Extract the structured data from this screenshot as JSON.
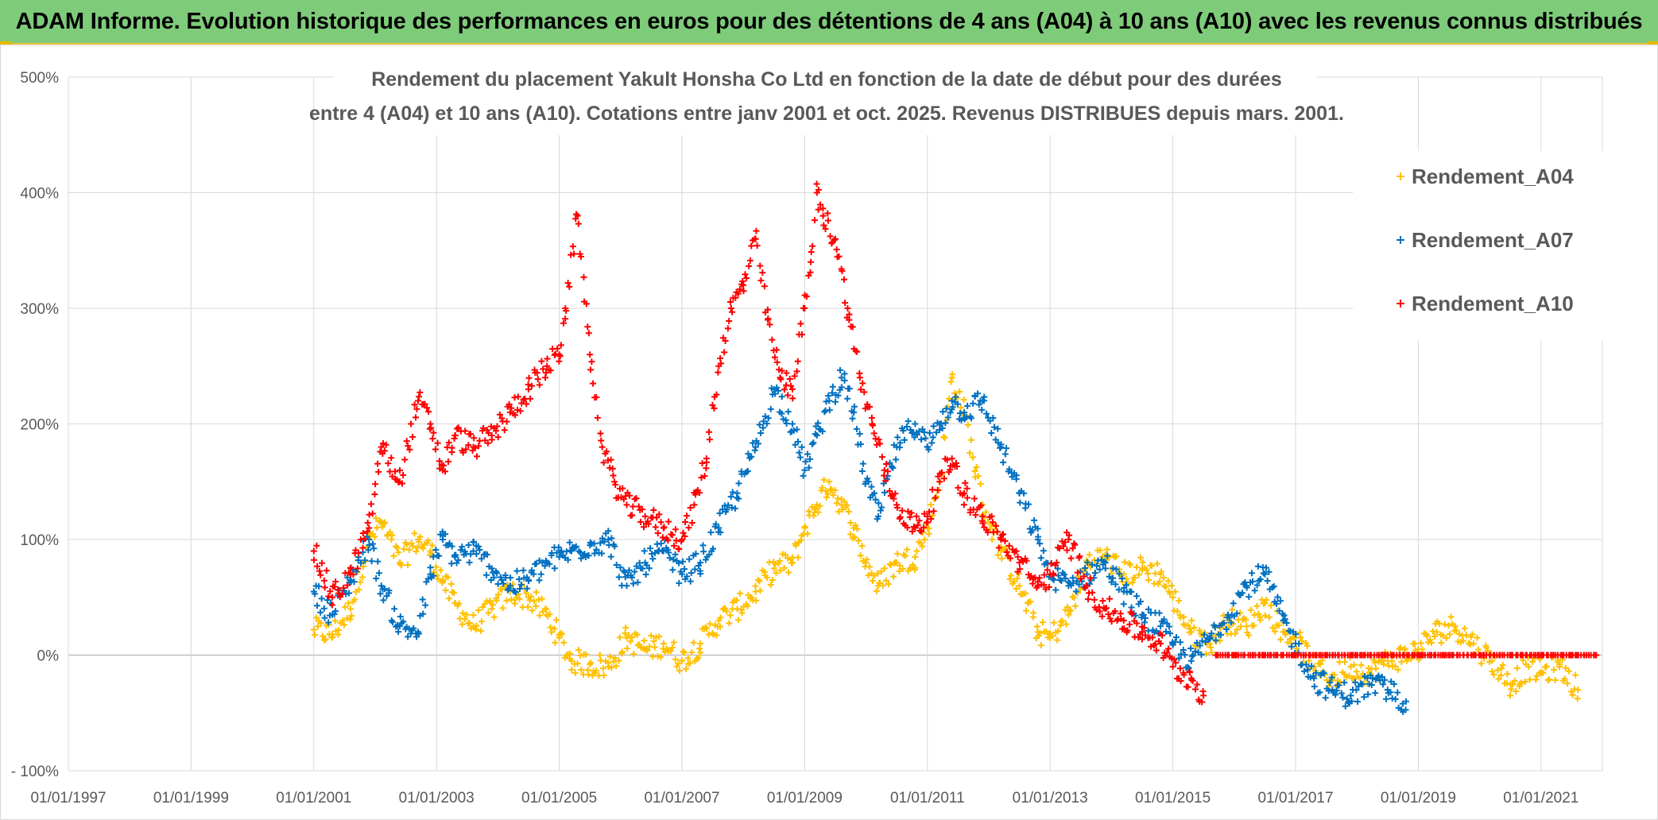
{
  "banner": {
    "title": "ADAM Informe. Evolution historique des performances en euros pour des détentions de 4 ans (A04) à 10 ans (A10) avec les revenus connus distribués"
  },
  "chart_data": {
    "type": "scatter",
    "title_lines": [
      "Rendement du placement Yakult Honsha Co Ltd en fonction de la date de début pour des durées",
      "entre 4 (A04) et 10 ans (A10). Cotations entre janv 2001 et oct. 2025. Revenus DISTRIBUES depuis mars. 2001."
    ],
    "xlabel": "",
    "ylabel": "",
    "ylim": [
      -100,
      500
    ],
    "y_ticks": [
      "500%",
      "400%",
      "300%",
      "200%",
      "100%",
      "0%",
      "- 100%"
    ],
    "y_tick_values": [
      500,
      400,
      300,
      200,
      100,
      0,
      -100
    ],
    "x_ticks": [
      "01/01/1997",
      "01/01/1999",
      "01/01/2001",
      "01/01/2003",
      "01/01/2005",
      "01/01/2007",
      "01/01/2009",
      "01/01/2011",
      "01/01/2013",
      "01/01/2015",
      "01/01/2017",
      "01/01/2019",
      "01/01/2021"
    ],
    "xlim": [
      1997.0,
      2022.0
    ],
    "grid": true,
    "legend_position": "top-right",
    "series": [
      {
        "name": "Rendement_A04",
        "color": "#ffc000",
        "x": [
          2001.0,
          2001.3,
          2001.6,
          2001.9,
          2002.1,
          2002.4,
          2002.7,
          2002.9,
          2003.1,
          2003.3,
          2003.6,
          2003.9,
          2004.2,
          2004.5,
          2004.8,
          2005.0,
          2005.2,
          2005.5,
          2005.8,
          2006.1,
          2006.4,
          2006.7,
          2007.0,
          2007.3,
          2007.6,
          2007.9,
          2008.2,
          2008.5,
          2008.8,
          2009.0,
          2009.2,
          2009.4,
          2009.6,
          2009.8,
          2010.0,
          2010.2,
          2010.5,
          2010.8,
          2011.0,
          2011.2,
          2011.4,
          2011.6,
          2011.9,
          2012.2,
          2012.5,
          2012.8,
          2013.0,
          2013.3,
          2013.6,
          2013.9,
          2014.2,
          2014.5,
          2014.8,
          2015.0,
          2015.3,
          2015.6,
          2015.9,
          2016.2,
          2016.5,
          2016.8,
          2017.0,
          2017.3,
          2017.6,
          2017.9,
          2018.2,
          2018.5,
          2018.8,
          2019.0,
          2019.3,
          2019.6,
          2019.9,
          2020.2,
          2020.5,
          2020.8,
          2021.0,
          2021.3,
          2021.6
        ],
        "values": [
          22,
          18,
          40,
          100,
          115,
          80,
          100,
          90,
          65,
          45,
          25,
          40,
          55,
          50,
          35,
          15,
          -5,
          -8,
          -10,
          15,
          5,
          10,
          -5,
          10,
          30,
          40,
          55,
          75,
          80,
          110,
          130,
          150,
          130,
          110,
          80,
          60,
          80,
          85,
          110,
          150,
          240,
          210,
          130,
          90,
          60,
          20,
          15,
          35,
          80,
          85,
          70,
          75,
          70,
          50,
          20,
          10,
          30,
          25,
          45,
          20,
          15,
          -10,
          -20,
          -10,
          -15,
          -5,
          0,
          5,
          20,
          25,
          10,
          -5,
          -25,
          -10,
          -15,
          -10,
          -30
        ]
      },
      {
        "name": "Rendement_A07",
        "color": "#0070c0",
        "x": [
          2001.0,
          2001.3,
          2001.6,
          2001.9,
          2002.1,
          2002.4,
          2002.7,
          2002.9,
          2003.1,
          2003.3,
          2003.6,
          2003.9,
          2004.2,
          2004.5,
          2004.8,
          2005.0,
          2005.2,
          2005.5,
          2005.8,
          2006.1,
          2006.4,
          2006.7,
          2007.0,
          2007.3,
          2007.6,
          2007.9,
          2008.2,
          2008.5,
          2008.8,
          2009.0,
          2009.2,
          2009.4,
          2009.6,
          2009.8,
          2010.0,
          2010.2,
          2010.5,
          2010.8,
          2011.0,
          2011.2,
          2011.4,
          2011.6,
          2011.9,
          2012.2,
          2012.5,
          2012.8,
          2013.0,
          2013.3,
          2013.6,
          2013.9,
          2014.2,
          2014.5,
          2014.8,
          2015.0,
          2015.3,
          2015.6,
          2015.9,
          2016.2,
          2016.5,
          2016.8,
          2017.0,
          2017.3,
          2017.6,
          2017.9,
          2018.2,
          2018.5,
          2018.8
        ],
        "values": [
          55,
          35,
          65,
          100,
          60,
          25,
          20,
          70,
          100,
          85,
          90,
          75,
          60,
          65,
          80,
          85,
          90,
          95,
          100,
          60,
          80,
          90,
          70,
          80,
          110,
          140,
          180,
          230,
          200,
          160,
          190,
          220,
          240,
          210,
          150,
          120,
          180,
          200,
          180,
          200,
          220,
          210,
          220,
          180,
          140,
          100,
          70,
          60,
          70,
          80,
          55,
          35,
          25,
          10,
          -5,
          15,
          35,
          60,
          70,
          30,
          10,
          -20,
          -30,
          -35,
          -25,
          -30,
          -40
        ]
      },
      {
        "name": "Rendement_A10",
        "color": "#ff0000",
        "x": [
          2001.0,
          2001.3,
          2001.6,
          2001.9,
          2002.1,
          2002.4,
          2002.7,
          2002.9,
          2003.1,
          2003.3,
          2003.6,
          2003.9,
          2004.2,
          2004.5,
          2004.8,
          2005.0,
          2005.1,
          2005.3,
          2005.5,
          2005.7,
          2005.9,
          2006.1,
          2006.4,
          2006.7,
          2007.0,
          2007.2,
          2007.4,
          2007.6,
          2007.8,
          2008.0,
          2008.2,
          2008.4,
          2008.6,
          2008.8,
          2009.0,
          2009.1,
          2009.2,
          2009.3,
          2009.5,
          2009.7,
          2009.9,
          2010.1,
          2010.3,
          2010.5,
          2010.8,
          2011.0,
          2011.2,
          2011.4,
          2011.6,
          2011.9,
          2012.2,
          2012.5,
          2012.8,
          2013.0,
          2013.3,
          2013.6,
          2013.9,
          2014.2,
          2014.5,
          2014.8,
          2015.0,
          2015.3,
          2015.5
        ],
        "values": [
          90,
          50,
          70,
          110,
          180,
          150,
          220,
          200,
          160,
          190,
          180,
          190,
          210,
          230,
          250,
          260,
          300,
          380,
          260,
          180,
          150,
          130,
          120,
          110,
          100,
          130,
          170,
          250,
          300,
          320,
          360,
          290,
          240,
          230,
          300,
          340,
          400,
          380,
          360,
          300,
          240,
          200,
          160,
          130,
          110,
          120,
          150,
          170,
          140,
          120,
          100,
          80,
          60,
          70,
          100,
          60,
          40,
          30,
          20,
          10,
          -10,
          -20,
          -35
        ]
      },
      {
        "name": "Rendement_A10",
        "color": "#ff0000",
        "x": [
          2015.7,
          2016.0,
          2016.5,
          2017.0,
          2017.5,
          2018.0,
          2018.5,
          2019.0,
          2019.5,
          2020.0,
          2020.5,
          2021.0,
          2021.5,
          2021.9
        ],
        "values": [
          0,
          0,
          0,
          0,
          0,
          0,
          0,
          0,
          0,
          0,
          0,
          0,
          0,
          0
        ]
      }
    ]
  }
}
